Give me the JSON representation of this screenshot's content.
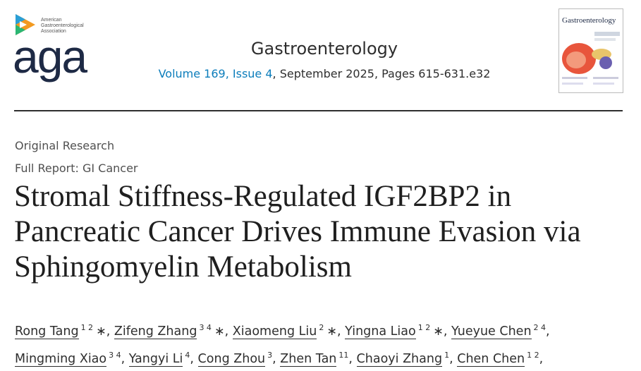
{
  "header": {
    "association": "American Gastroenterological Association",
    "logo": "aga",
    "journal": "Gastroenterology",
    "volume_issue": "Volume 169, Issue 4",
    "issue_rest": ", September 2025, Pages 615-631.e32",
    "cover_title": "Gastroenterology"
  },
  "article": {
    "type": "Original Research",
    "section": "Full Report: GI Cancer",
    "title": "Stromal Stiffness-Regulated IGF2BP2 in Pancreatic Cancer Drives Immune Evasion via Sphingomyelin Metabolism",
    "author_separator": ",",
    "authors": [
      {
        "name": "Rong Tang",
        "affiliations": "1 2",
        "mark": "∗"
      },
      {
        "name": "Zifeng Zhang",
        "affiliations": "3 4",
        "mark": "∗"
      },
      {
        "name": "Xiaomeng Liu",
        "affiliations": "2",
        "mark": "∗"
      },
      {
        "name": "Yingna Liao",
        "affiliations": "1 2",
        "mark": "∗"
      },
      {
        "name": "Yueyue Chen",
        "affiliations": "2 4"
      },
      {
        "name": "Mingming Xiao",
        "affiliations": "3 4"
      },
      {
        "name": "Yangyi Li",
        "affiliations": "4"
      },
      {
        "name": "Cong Zhou",
        "affiliations": "3"
      },
      {
        "name": "Zhen Tan",
        "affiliations": "11"
      },
      {
        "name": "Chaoyi Zhang",
        "affiliations": "1"
      },
      {
        "name": "Chen Chen",
        "affiliations": "1 2"
      }
    ]
  }
}
